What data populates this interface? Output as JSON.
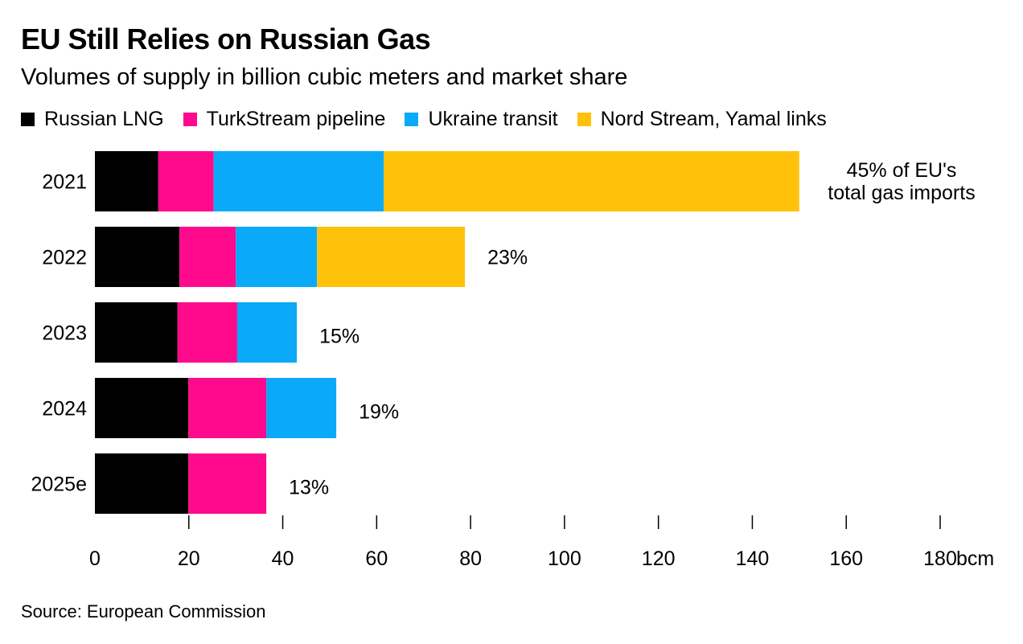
{
  "chart_data": {
    "type": "bar",
    "orientation": "horizontal",
    "stacked": true,
    "title": "EU Still Relies on Russian Gas",
    "subtitle": "Volumes of supply in billion cubic meters and market share",
    "xlabel": "",
    "ylabel": "",
    "x_unit_label": "bcm",
    "xlim": [
      0,
      180
    ],
    "xticks": [
      0,
      20,
      40,
      60,
      80,
      100,
      120,
      140,
      160,
      180
    ],
    "grid": false,
    "legend_position": "top-left",
    "categories": [
      "2021",
      "2022",
      "2023",
      "2024",
      "2025e"
    ],
    "series": [
      {
        "name": "Russian LNG",
        "color": "#000000",
        "values": [
          13.5,
          18.0,
          17.6,
          19.9,
          19.9
        ]
      },
      {
        "name": "TurkStream pipeline",
        "color": "#ff0a8c",
        "values": [
          11.8,
          12.0,
          12.7,
          16.6,
          16.6
        ]
      },
      {
        "name": "Ukraine transit",
        "color": "#0aaaf8",
        "values": [
          36.2,
          17.3,
          12.7,
          14.9,
          0
        ]
      },
      {
        "name": "Nord Stream, Yamal links",
        "color": "#ffc20a",
        "values": [
          88.5,
          31.5,
          0,
          0,
          0
        ]
      }
    ],
    "annotations": [
      {
        "category": "2021",
        "text_lines": [
          "45% of EU's",
          "total gas imports"
        ]
      },
      {
        "category": "2022",
        "text_lines": [
          "23%"
        ]
      },
      {
        "category": "2023",
        "text_lines": [
          "15%"
        ]
      },
      {
        "category": "2024",
        "text_lines": [
          "19%"
        ]
      },
      {
        "category": "2025e",
        "text_lines": [
          "13%"
        ]
      }
    ],
    "source": "Source: European Commission"
  }
}
